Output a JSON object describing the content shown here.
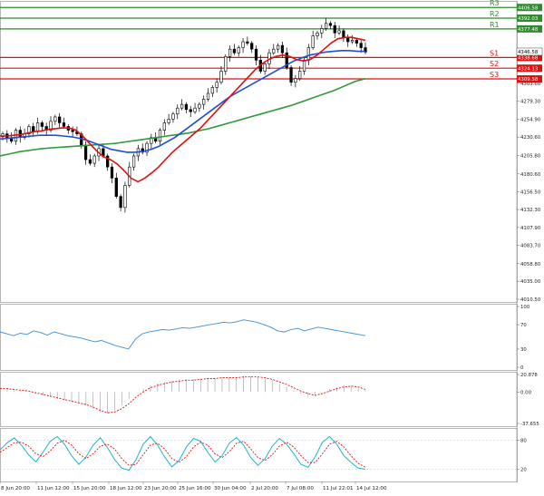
{
  "chart_data": {
    "type": "candlestick",
    "symbol_ticks": {
      "price_axis": [
        "4406.58",
        "4392.03",
        "4377.48",
        "4346.58",
        "4338.68",
        "4324.13",
        "4309.58",
        "4303.60",
        "4279.30",
        "4254.90",
        "4230.60",
        "4205.80",
        "4180.60",
        "4156.50",
        "4132.30",
        "4107.90",
        "4083.70",
        "4058.80",
        "4035.00",
        "4010.50"
      ],
      "rsi_axis": [
        "100",
        "70",
        "30",
        "0"
      ],
      "macd_axis": [
        "20.878",
        "0.00",
        "-37.655"
      ],
      "stoch_axis": [
        "80",
        "20"
      ]
    },
    "x_labels": [
      "8 Jun 20:00",
      "11 Jun 12:00",
      "15 Jun 20:00",
      "18 Jun 12:00",
      "23 Jun 20:00",
      "25 Jun 16:00",
      "30 Jun 04:00",
      "2 Jul 20:00",
      "7 Jul 08:00",
      "11 Jul 22:01",
      "14 Jul 12:00"
    ],
    "levels": [
      {
        "name": "R3",
        "value": 4406.58,
        "color": "#2e8b2e"
      },
      {
        "name": "R2",
        "value": 4392.03,
        "color": "#2e8b2e"
      },
      {
        "name": "R1",
        "value": 4377.48,
        "color": "#2e8b2e"
      },
      {
        "name": "S1",
        "value": 4338.68,
        "color": "#e01010"
      },
      {
        "name": "S2",
        "value": 4324.13,
        "color": "#e01010"
      },
      {
        "name": "S3",
        "value": 4309.58,
        "color": "#e01010"
      }
    ],
    "last_price": 4346.58,
    "last_price_label": "4346.58",
    "price_ylim": [
      4010.5,
      4413
    ],
    "close_series": [
      4235,
      4230,
      4225,
      4240,
      4230,
      4235,
      4245,
      4238,
      4250,
      4245,
      4240,
      4252,
      4258,
      4250,
      4245,
      4240,
      4238,
      4235,
      4220,
      4200,
      4195,
      4205,
      4215,
      4205,
      4190,
      4175,
      4150,
      4135,
      4165,
      4190,
      4205,
      4215,
      4210,
      4222,
      4230,
      4225,
      4240,
      4250,
      4255,
      4262,
      4270,
      4275,
      4268,
      4265,
      4270,
      4275,
      4282,
      4290,
      4298,
      4305,
      4320,
      4340,
      4350,
      4345,
      4352,
      4360,
      4358,
      4350,
      4335,
      4320,
      4330,
      4345,
      4350,
      4355,
      4345,
      4325,
      4305,
      4310,
      4320,
      4335,
      4352,
      4368,
      4372,
      4378,
      4385,
      4382,
      4372,
      4375,
      4365,
      4360,
      4362,
      4358,
      4352,
      4346
    ],
    "ma_fast": [
      4232,
      4232,
      4233,
      4234,
      4236,
      4238,
      4239,
      4241,
      4242,
      4243,
      4243,
      4240,
      4232,
      4222,
      4212,
      4204,
      4200,
      4194,
      4185,
      4175,
      4170,
      4175,
      4182,
      4190,
      4200,
      4210,
      4218,
      4226,
      4234,
      4242,
      4252,
      4262,
      4272,
      4282,
      4292,
      4302,
      4312,
      4322,
      4330,
      4336,
      4340,
      4342,
      4340,
      4336,
      4334,
      4336,
      4342,
      4350,
      4358,
      4364,
      4366,
      4366,
      4364,
      4362
    ],
    "ma_mid": [
      4228,
      4229,
      4230,
      4231,
      4232,
      4233,
      4233,
      4233,
      4232,
      4231,
      4229,
      4226,
      4222,
      4218,
      4214,
      4212,
      4210,
      4210,
      4211,
      4214,
      4218,
      4224,
      4230,
      4238,
      4246,
      4254,
      4262,
      4270,
      4278,
      4286,
      4292,
      4298,
      4304,
      4310,
      4316,
      4322,
      4328,
      4334,
      4338,
      4342,
      4344,
      4346,
      4347,
      4348,
      4348,
      4347,
      4347
    ],
    "ma_slow": [
      4205,
      4208,
      4211,
      4213,
      4215,
      4216,
      4217,
      4218,
      4219,
      4220,
      4221,
      4222,
      4224,
      4226,
      4228,
      4230,
      4232,
      4234,
      4236,
      4239,
      4242,
      4246,
      4250,
      4254,
      4258,
      4262,
      4266,
      4270,
      4274,
      4279,
      4284,
      4289,
      4294,
      4300,
      4306,
      4310
    ],
    "rsi": [
      58,
      55,
      52,
      56,
      54,
      60,
      57,
      53,
      58,
      55,
      52,
      50,
      48,
      45,
      42,
      44,
      40,
      36,
      33,
      30,
      46,
      55,
      58,
      60,
      62,
      61,
      63,
      65,
      64,
      66,
      68,
      70,
      72,
      74,
      73,
      75,
      78,
      76,
      74,
      70,
      66,
      60,
      58,
      62,
      64,
      60,
      63,
      66,
      64,
      62,
      60,
      58,
      56,
      54,
      52
    ],
    "macd_hist": [
      3,
      4,
      2,
      1,
      0,
      -2,
      -4,
      -6,
      -8,
      -10,
      -12,
      -14,
      -16,
      -20,
      -24,
      -26,
      -22,
      -16,
      -8,
      0,
      4,
      8,
      10,
      12,
      13,
      14,
      15,
      15,
      16,
      17,
      17,
      18,
      18,
      18,
      19,
      19,
      18,
      16,
      14,
      10,
      6,
      2,
      -2,
      -6,
      -4,
      0,
      4,
      6,
      8,
      7,
      5,
      2
    ],
    "macd_signal": [
      4,
      4,
      3,
      2,
      1,
      -1,
      -3,
      -5,
      -7,
      -9,
      -11,
      -13,
      -15,
      -18,
      -22,
      -25,
      -24,
      -20,
      -14,
      -6,
      0,
      5,
      8,
      10,
      12,
      13,
      14,
      14,
      15,
      16,
      16,
      17,
      17,
      17,
      18,
      18,
      18,
      17,
      15,
      12,
      9,
      5,
      1,
      -2,
      -4,
      -2,
      1,
      4,
      6,
      7,
      6,
      3
    ],
    "stoch_k": [
      60,
      75,
      85,
      70,
      50,
      35,
      55,
      78,
      88,
      72,
      48,
      30,
      45,
      70,
      85,
      65,
      40,
      22,
      18,
      40,
      72,
      88,
      70,
      45,
      25,
      38,
      66,
      84,
      78,
      55,
      35,
      48,
      74,
      86,
      70,
      44,
      28,
      42,
      68,
      84,
      72,
      52,
      30,
      24,
      46,
      76,
      88,
      72,
      48,
      34,
      22,
      20
    ],
    "stoch_d": [
      55,
      65,
      75,
      76,
      68,
      52,
      46,
      58,
      74,
      80,
      70,
      52,
      42,
      52,
      68,
      72,
      62,
      42,
      28,
      30,
      50,
      70,
      74,
      62,
      42,
      34,
      46,
      66,
      76,
      70,
      52,
      44,
      56,
      74,
      78,
      62,
      44,
      38,
      50,
      68,
      76,
      66,
      48,
      34,
      34,
      52,
      72,
      78,
      66,
      48,
      32,
      24
    ]
  },
  "colors": {
    "up_candle": "#ffffff",
    "down_candle": "#000000",
    "ma_fast": "#e01010",
    "ma_mid": "#1e4fd8",
    "ma_slow": "#2e9a3a",
    "rsi": "#3c8fd8",
    "macd_signal": "#e01010",
    "macd_hist": "#9a9a9a",
    "stoch_k": "#1eb5c8",
    "stoch_d": "#e01010",
    "support": "#e01010",
    "resistance": "#2e8b2e"
  }
}
